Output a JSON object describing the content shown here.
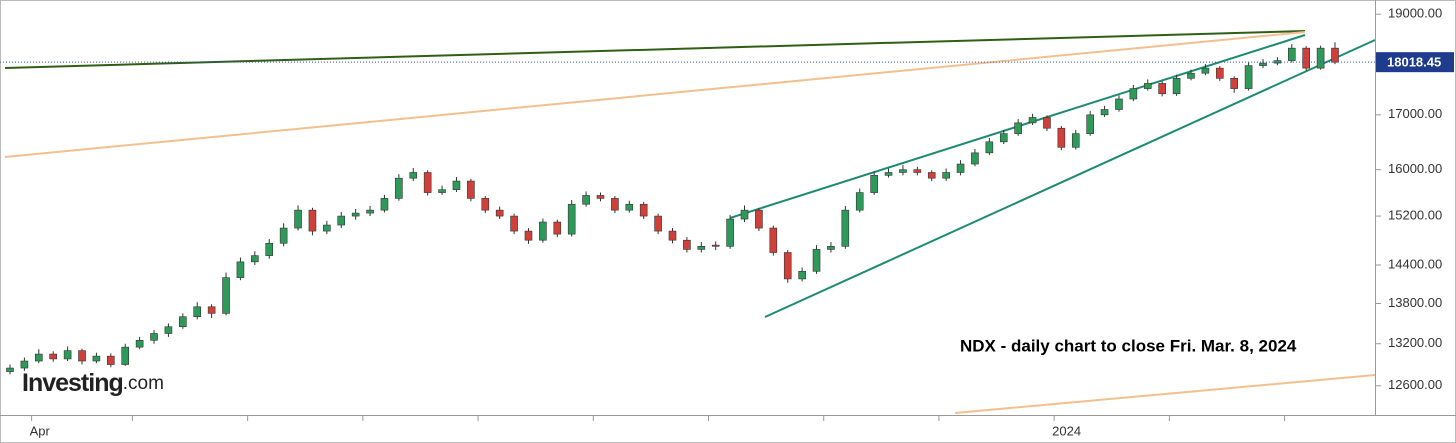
{
  "chart_data": {
    "type": "candlestick",
    "log": true,
    "ylim": [
      12200,
      19300
    ],
    "yticks": [
      {
        "value": 12600,
        "label": "12600.00"
      },
      {
        "value": 13200,
        "label": "13200.00"
      },
      {
        "value": 13800,
        "label": "13800.00"
      },
      {
        "value": 14400,
        "label": "14400.00"
      },
      {
        "value": 15200,
        "label": "15200.00"
      },
      {
        "value": 16000,
        "label": "16000.00"
      },
      {
        "value": 17000,
        "label": "17000.00"
      },
      {
        "value": 19000,
        "label": "19000.00"
      }
    ],
    "up_color": "#2e9a5a",
    "down_color": "#d0403a",
    "annotation": "NDX - daily chart to close Fri. Mar. 8, 2024",
    "logo": {
      "name": "Investing",
      "suffix": ".com"
    },
    "sections": [
      {
        "label": null,
        "candles": [
          [
            12800,
            12900,
            12760,
            12850
          ],
          [
            12850,
            13000,
            12810,
            12950
          ]
        ]
      },
      {
        "label": "Apr",
        "candles": [
          [
            12950,
            13120,
            12920,
            13050
          ],
          [
            13050,
            13090,
            12940,
            12980
          ],
          [
            12980,
            13160,
            12950,
            13100
          ],
          [
            13100,
            13130,
            12900,
            12950
          ],
          [
            12950,
            13070,
            12920,
            13020
          ],
          [
            13020,
            13060,
            12860,
            12900
          ],
          [
            12900,
            13200,
            12880,
            13150
          ]
        ]
      },
      {
        "label": null,
        "candles": [
          [
            13150,
            13300,
            13120,
            13250
          ],
          [
            13250,
            13400,
            13200,
            13350
          ],
          [
            13350,
            13500,
            13300,
            13450
          ],
          [
            13450,
            13650,
            13420,
            13600
          ],
          [
            13600,
            13820,
            13560,
            13750
          ],
          [
            13750,
            13790,
            13580,
            13650
          ],
          [
            13650,
            14280,
            13620,
            14200
          ],
          [
            14200,
            14520,
            14160,
            14450
          ]
        ]
      },
      {
        "label": null,
        "candles": [
          [
            14450,
            14620,
            14400,
            14550
          ],
          [
            14550,
            14820,
            14500,
            14750
          ],
          [
            14750,
            15080,
            14700,
            15000
          ],
          [
            15000,
            15380,
            14960,
            15300
          ],
          [
            15300,
            15340,
            14880,
            14950
          ],
          [
            14950,
            15120,
            14900,
            15050
          ],
          [
            15050,
            15270,
            15000,
            15200
          ],
          [
            15200,
            15320,
            15140,
            15250
          ]
        ]
      },
      {
        "label": null,
        "candles": [
          [
            15250,
            15370,
            15200,
            15300
          ],
          [
            15300,
            15560,
            15260,
            15500
          ],
          [
            15500,
            15920,
            15460,
            15850
          ],
          [
            15850,
            16030,
            15800,
            15950
          ],
          [
            15950,
            15990,
            15550,
            15600
          ],
          [
            15600,
            15720,
            15560,
            15650
          ],
          [
            15650,
            15870,
            15610,
            15800
          ],
          [
            15800,
            15840,
            15450,
            15500
          ]
        ]
      },
      {
        "label": null,
        "candles": [
          [
            15500,
            15540,
            15250,
            15300
          ],
          [
            15300,
            15360,
            15150,
            15200
          ],
          [
            15200,
            15240,
            14900,
            14950
          ],
          [
            14950,
            15000,
            14740,
            14800
          ],
          [
            14800,
            15160,
            14760,
            15100
          ],
          [
            15100,
            15140,
            14850,
            14900
          ],
          [
            14900,
            15470,
            14860,
            15400
          ],
          [
            15400,
            15620,
            15360,
            15550
          ]
        ]
      },
      {
        "label": null,
        "candles": [
          [
            15550,
            15600,
            15450,
            15500
          ],
          [
            15500,
            15540,
            15250,
            15300
          ],
          [
            15300,
            15460,
            15260,
            15400
          ],
          [
            15400,
            15440,
            15150,
            15200
          ],
          [
            15200,
            15240,
            14900,
            14950
          ],
          [
            14950,
            15000,
            14750,
            14800
          ],
          [
            14800,
            14850,
            14600,
            14650
          ],
          [
            14650,
            14770,
            14600,
            14700
          ]
        ]
      },
      {
        "label": null,
        "candles": [
          [
            14720,
            14780,
            14640,
            14700
          ],
          [
            14700,
            15220,
            14660,
            15150
          ],
          [
            15150,
            15380,
            15100,
            15300
          ],
          [
            15300,
            15340,
            14950,
            15000
          ],
          [
            15000,
            15040,
            14550,
            14600
          ],
          [
            14600,
            14640,
            14120,
            14180
          ],
          [
            14180,
            14360,
            14140,
            14300
          ],
          [
            14300,
            14720,
            14260,
            14650
          ]
        ]
      },
      {
        "label": null,
        "candles": [
          [
            14650,
            14770,
            14600,
            14700
          ],
          [
            14700,
            15370,
            14660,
            15300
          ],
          [
            15300,
            15670,
            15260,
            15600
          ],
          [
            15600,
            15970,
            15560,
            15900
          ],
          [
            15900,
            16020,
            15860,
            15950
          ],
          [
            15950,
            16080,
            15900,
            16000
          ],
          [
            16000,
            16050,
            15900,
            15950
          ],
          [
            15950,
            15990,
            15800,
            15850
          ]
        ]
      },
      {
        "label": null,
        "candles": [
          [
            15850,
            16020,
            15800,
            15950
          ],
          [
            15950,
            16170,
            15900,
            16100
          ],
          [
            16100,
            16370,
            16060,
            16300
          ],
          [
            16300,
            16570,
            16260,
            16500
          ],
          [
            16500,
            16720,
            16460,
            16650
          ],
          [
            16650,
            16920,
            16610,
            16850
          ],
          [
            16850,
            17020,
            16810,
            16950
          ],
          [
            16950,
            16990,
            16700,
            16750
          ]
        ]
      },
      {
        "label": "2024",
        "candles": [
          [
            16750,
            16790,
            16350,
            16400
          ],
          [
            16400,
            16720,
            16360,
            16650
          ],
          [
            16650,
            17070,
            16610,
            17000
          ],
          [
            17000,
            17170,
            16960,
            17100
          ],
          [
            17100,
            17370,
            17060,
            17300
          ],
          [
            17300,
            17570,
            17260,
            17500
          ],
          [
            17500,
            17680,
            17460,
            17600
          ],
          [
            17600,
            17640,
            17350,
            17400
          ]
        ]
      },
      {
        "label": null,
        "candles": [
          [
            17400,
            17770,
            17360,
            17700
          ],
          [
            17700,
            17870,
            17660,
            17800
          ],
          [
            17800,
            17980,
            17760,
            17900
          ],
          [
            17900,
            17940,
            17650,
            17700
          ],
          [
            17700,
            17740,
            17420,
            17500
          ],
          [
            17500,
            18020,
            17460,
            17950
          ],
          [
            17950,
            18080,
            17900,
            18000
          ],
          [
            18000,
            18120,
            17960,
            18050
          ]
        ]
      },
      {
        "label": null,
        "candles": [
          [
            18050,
            18380,
            18010,
            18300
          ],
          [
            18300,
            18340,
            17850,
            17900
          ],
          [
            17900,
            18350,
            17870,
            18300
          ],
          [
            18300,
            18420,
            17980,
            18018.45
          ]
        ]
      }
    ]
  }
}
